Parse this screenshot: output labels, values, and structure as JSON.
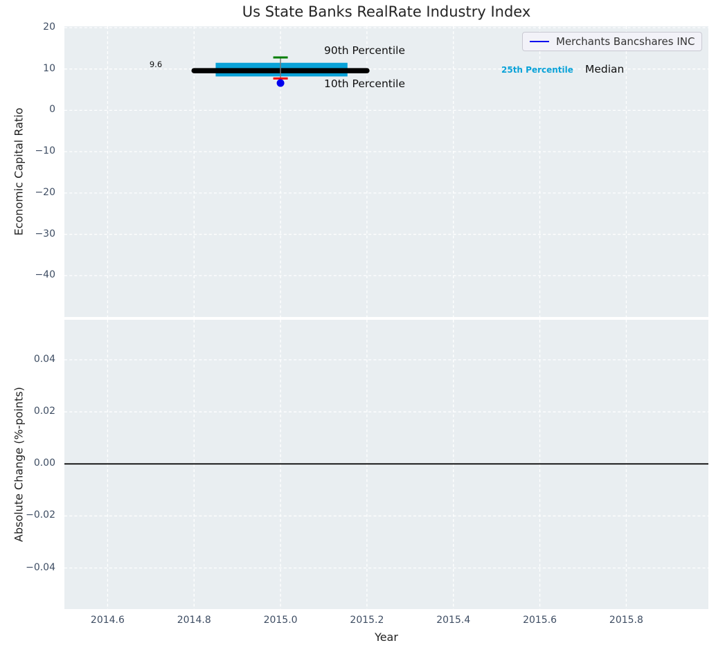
{
  "colors": {
    "figure_bg": "#ffffff",
    "axes_bg": "#e9eef1",
    "grid": "#ffffff",
    "median_line": "#000000",
    "iqr_band": "#0aa2d8",
    "p90_cap": "#007d00",
    "p10_cap": "#ee0000",
    "company_point": "#0000ee",
    "whisker": "#7a7a7a",
    "tick_text": "#3e4d63",
    "zero_line": "#000000",
    "legend_bg": "#f2f2f8",
    "legend_border": "#c9c9d2"
  },
  "chart_data": [
    {
      "type": "percentile-index",
      "title": "Us State Banks RealRate Industry Index",
      "ylabel": "Economic Capital Ratio",
      "xlim": [
        2014.5,
        2015.99
      ],
      "ylim": [
        -50,
        20.33
      ],
      "grid": true,
      "yticks": [
        20,
        10,
        0,
        -10,
        -20,
        -30,
        -40
      ],
      "ytick_labels": [
        "20",
        "10",
        "0",
        "−10",
        "−20",
        "−30",
        "−40"
      ],
      "xticks": [
        2014.6,
        2014.8,
        2015.0,
        2015.2,
        2015.4,
        2015.6,
        2015.8
      ],
      "xtick_labels": [
        "2014.6",
        "2014.8",
        "2015.0",
        "2015.2",
        "2015.4",
        "2015.6",
        "2015.8"
      ],
      "median": {
        "value": 9.6,
        "x_start": 2014.8,
        "x_end": 2015.2,
        "label": "Median",
        "annotation": "9.6",
        "annotation_pos": {
          "x": 2014.71,
          "y": 11.1
        }
      },
      "iqr_band": {
        "p25": 8.2,
        "p75": 11.5,
        "x_start": 2014.85,
        "x_end": 2015.155,
        "label": "25th Percentile"
      },
      "p90": {
        "value": 12.8,
        "x": 2015.0,
        "label": "90th Percentile"
      },
      "p10": {
        "value": 7.7,
        "x": 2015.0,
        "label": "10th Percentile"
      },
      "company_point": {
        "name": "Merchants Bancshares INC",
        "x": 2015.0,
        "value": 6.6
      },
      "legend": {
        "position": "upper right",
        "entries": [
          "Merchants Bancshares INC"
        ]
      }
    },
    {
      "type": "line",
      "ylabel": "Absolute Change (%-points)",
      "xlabel": "Year",
      "xlim": [
        2014.5,
        2015.99
      ],
      "ylim": [
        -0.0558,
        0.0554
      ],
      "grid": true,
      "yticks": [
        0.04,
        0.02,
        0.0,
        -0.02,
        -0.04
      ],
      "ytick_labels": [
        "0.04",
        "0.02",
        "0.00",
        "−0.02",
        "−0.04"
      ],
      "xticks": [
        2014.6,
        2014.8,
        2015.0,
        2015.2,
        2015.4,
        2015.6,
        2015.8
      ],
      "xtick_labels": [
        "2014.6",
        "2014.8",
        "2015.0",
        "2015.2",
        "2015.4",
        "2015.6",
        "2015.8"
      ],
      "zero_line": 0.0,
      "series": []
    }
  ]
}
